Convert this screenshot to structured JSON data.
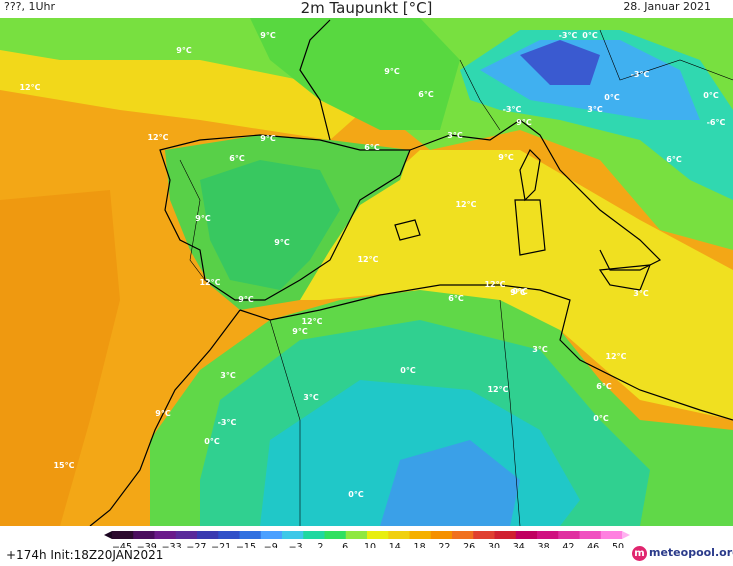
{
  "header": {
    "left": "???, 1Uhr",
    "title": "2m Taupunkt [°C]",
    "date": "28. Januar 2021"
  },
  "footer": {
    "run_info": "+174h  Init:18Z20JAN2021",
    "logo_text": "meteopool.org",
    "logo_mark": "m"
  },
  "colorbar": {
    "ticks": [
      "-45",
      "-39",
      "-33",
      "-27",
      "-21",
      "-15",
      "-9",
      "-3",
      "2",
      "6",
      "10",
      "14",
      "18",
      "22",
      "26",
      "30",
      "34",
      "38",
      "42",
      "46",
      "50"
    ],
    "colors": [
      "#2b0a2e",
      "#4a0d5e",
      "#6a1a8a",
      "#5a2a9a",
      "#3a3ab0",
      "#3050c8",
      "#3070e0",
      "#4aa0ff",
      "#3ec8e8",
      "#20d8a0",
      "#30e060",
      "#8fe840",
      "#e8ee10",
      "#f0d010",
      "#f5b000",
      "#f59000",
      "#f07020",
      "#e04030",
      "#d02030",
      "#c00060",
      "#d01080",
      "#e030a0",
      "#f050c0",
      "#ff80e0"
    ]
  },
  "map_labels": [
    {
      "text": "9°C"
    },
    {
      "text": "9°C"
    },
    {
      "text": "12°C"
    },
    {
      "text": "9°C"
    },
    {
      "text": "6°C"
    },
    {
      "text": "-3°C"
    },
    {
      "text": "0°C"
    },
    {
      "text": "-3°C"
    },
    {
      "text": "0°C"
    },
    {
      "text": "3°C"
    },
    {
      "text": "-3°C"
    },
    {
      "text": "-6°C"
    },
    {
      "text": "12°C"
    },
    {
      "text": "9°C"
    },
    {
      "text": "6°C"
    },
    {
      "text": "6°C"
    },
    {
      "text": "3°C"
    },
    {
      "text": "9°C"
    },
    {
      "text": "9°C"
    },
    {
      "text": "6°C"
    },
    {
      "text": "12°C"
    },
    {
      "text": "9°C"
    },
    {
      "text": "9°C"
    },
    {
      "text": "12°C"
    },
    {
      "text": "12°C"
    },
    {
      "text": "12°C"
    },
    {
      "text": "9°C"
    },
    {
      "text": "6°C"
    },
    {
      "text": "12°C"
    },
    {
      "text": "9°C"
    },
    {
      "text": "3°C"
    },
    {
      "text": "12°C"
    },
    {
      "text": "9°C"
    },
    {
      "text": "3°C"
    },
    {
      "text": "3°C"
    },
    {
      "text": "0°C"
    },
    {
      "text": "3°C"
    },
    {
      "text": "12°C"
    },
    {
      "text": "6°C"
    },
    {
      "text": "9°C"
    },
    {
      "text": "-3°C"
    },
    {
      "text": "0°C"
    },
    {
      "text": "0°C"
    },
    {
      "text": "0°C"
    },
    {
      "text": "15°C"
    },
    {
      "text": "0°C"
    },
    {
      "text": "0°C"
    }
  ]
}
